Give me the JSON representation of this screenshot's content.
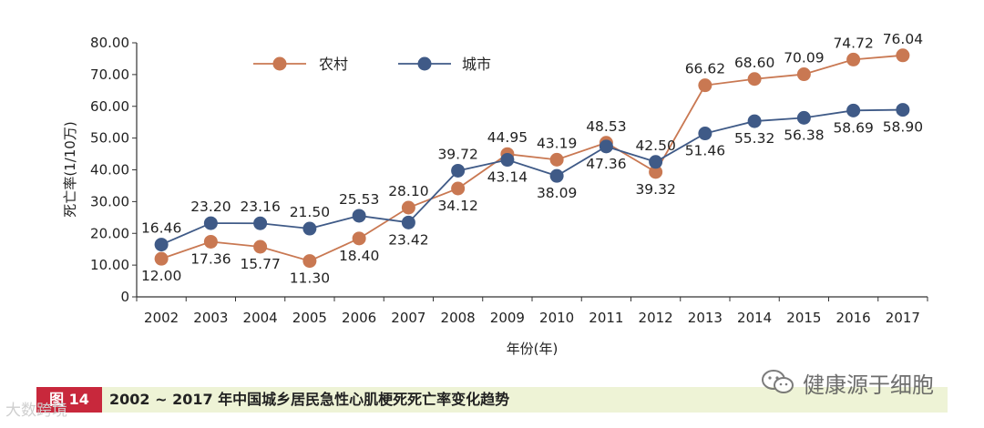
{
  "chart_data": {
    "type": "line",
    "x": [
      2002,
      2003,
      2004,
      2005,
      2006,
      2007,
      2008,
      2009,
      2010,
      2011,
      2012,
      2013,
      2014,
      2015,
      2016,
      2017
    ],
    "series": [
      {
        "name": "农村",
        "color": "#c97852",
        "values": [
          12.0,
          17.36,
          15.77,
          11.3,
          18.4,
          28.1,
          34.12,
          44.95,
          43.19,
          48.53,
          39.32,
          66.62,
          68.6,
          70.09,
          74.72,
          76.04
        ],
        "labels": [
          "12.00",
          "17.36",
          "15.77",
          "11.30",
          "18.40",
          "28.10",
          "34.12",
          "44.95",
          "43.19",
          "48.53",
          "39.32",
          "66.62",
          "68.60",
          "70.09",
          "74.72",
          "76.04"
        ]
      },
      {
        "name": "城市",
        "color": "#3f5a87",
        "values": [
          16.46,
          23.2,
          23.16,
          21.5,
          25.53,
          23.42,
          39.72,
          43.14,
          38.09,
          47.36,
          42.5,
          51.46,
          55.32,
          56.38,
          58.69,
          58.9
        ],
        "labels": [
          "16.46",
          "23.20",
          "23.16",
          "21.50",
          "25.53",
          "23.42",
          "39.72",
          "43.14",
          "38.09",
          "47.36",
          "42.50",
          "51.46",
          "55.32",
          "56.38",
          "58.69",
          "58.90"
        ]
      }
    ],
    "ylabel": "死亡率(1/10万)",
    "xlabel": "年份(年)",
    "ylim": [
      0,
      80
    ],
    "yticks": [
      "0",
      "10.00",
      "20.00",
      "30.00",
      "40.00",
      "50.00",
      "60.00",
      "70.00",
      "80.00"
    ],
    "grid": false,
    "legend": "top-left"
  },
  "caption": {
    "badge": "图 14",
    "text": "2002 ~ 2017 年中国城乡居民急性心肌梗死死亡率变化趋势"
  },
  "watermarks": {
    "right": "健康源于细胞",
    "left": "大数跨境"
  }
}
